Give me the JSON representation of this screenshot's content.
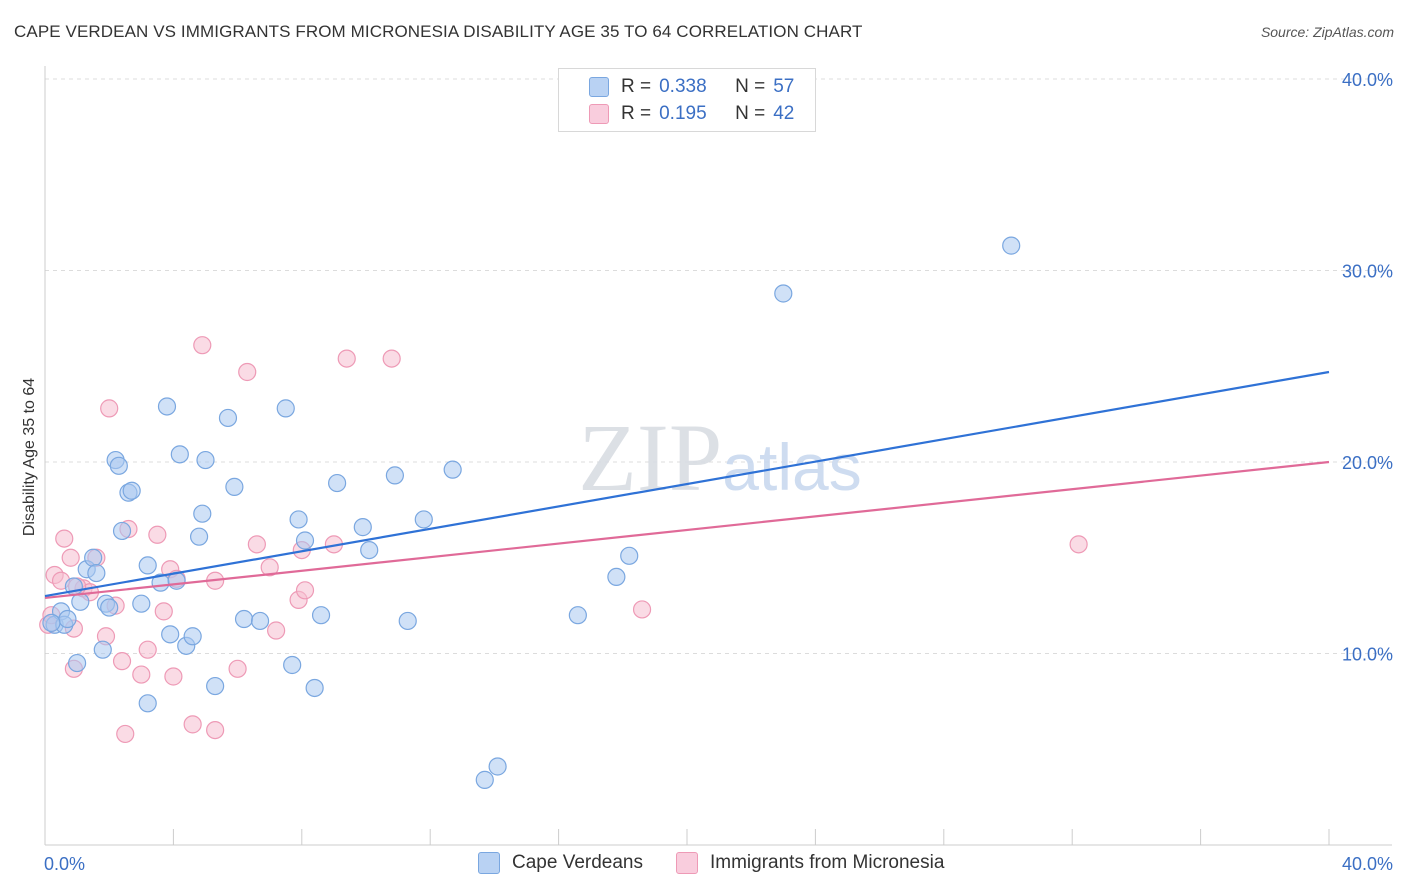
{
  "title": "CAPE VERDEAN VS IMMIGRANTS FROM MICRONESIA DISABILITY AGE 35 TO 64 CORRELATION CHART",
  "source": "Source: ZipAtlas.com",
  "watermark": "ZIPatlas",
  "colors": {
    "blue_fill": "#a9c8f0",
    "blue_stroke": "#7aa7e0",
    "blue_line": "#2f72d6",
    "pink_fill": "#f6bdd0",
    "pink_stroke": "#ee9ab6",
    "pink_line": "#e06a98",
    "tick_text": "#3b6fc4"
  },
  "legend": {
    "rows": [
      {
        "r_label": "R =",
        "r_value": "0.338",
        "n_label": "N =",
        "n_value": "57"
      },
      {
        "r_label": "R =",
        "r_value": "0.195",
        "n_label": "N =",
        "n_value": "42"
      }
    ]
  },
  "bottom_legend": [
    "Cape Verdeans",
    "Immigrants from Micronesia"
  ],
  "chart_data": {
    "type": "scatter",
    "title": "CAPE VERDEAN VS IMMIGRANTS FROM MICRONESIA DISABILITY AGE 35 TO 64 CORRELATION CHART",
    "xlabel": "",
    "ylabel": "Disability Age 35 to 64",
    "xlim": [
      0,
      40
    ],
    "ylim": [
      0,
      40
    ],
    "x_tick_labels": [
      "0.0%",
      "40.0%"
    ],
    "y_ticks": [
      10,
      20,
      30,
      40
    ],
    "y_tick_labels": [
      "10.0%",
      "20.0%",
      "30.0%",
      "40.0%"
    ],
    "grid": true,
    "legend_position": "top-center",
    "series": [
      {
        "name": "Cape Verdeans",
        "trend": {
          "x": [
            0,
            40
          ],
          "y": [
            13.0,
            24.7
          ]
        },
        "points": [
          [
            0.3,
            11.5
          ],
          [
            0.5,
            12.2
          ],
          [
            0.6,
            11.5
          ],
          [
            0.7,
            11.8
          ],
          [
            0.9,
            13.5
          ],
          [
            1.0,
            9.5
          ],
          [
            1.1,
            12.7
          ],
          [
            1.3,
            14.4
          ],
          [
            1.5,
            15.0
          ],
          [
            1.6,
            14.2
          ],
          [
            1.8,
            10.2
          ],
          [
            1.9,
            12.6
          ],
          [
            2.0,
            12.4
          ],
          [
            2.2,
            20.1
          ],
          [
            2.3,
            19.8
          ],
          [
            2.4,
            16.4
          ],
          [
            2.6,
            18.4
          ],
          [
            2.7,
            18.5
          ],
          [
            3.0,
            12.6
          ],
          [
            3.2,
            14.6
          ],
          [
            3.2,
            7.4
          ],
          [
            3.6,
            13.7
          ],
          [
            3.8,
            22.9
          ],
          [
            3.9,
            11.0
          ],
          [
            4.1,
            13.8
          ],
          [
            4.2,
            20.4
          ],
          [
            4.4,
            10.4
          ],
          [
            4.6,
            10.9
          ],
          [
            4.8,
            16.1
          ],
          [
            4.9,
            17.3
          ],
          [
            5.0,
            20.1
          ],
          [
            5.3,
            8.3
          ],
          [
            5.7,
            22.3
          ],
          [
            5.9,
            18.7
          ],
          [
            6.2,
            11.8
          ],
          [
            6.7,
            11.7
          ],
          [
            7.5,
            22.8
          ],
          [
            7.7,
            9.4
          ],
          [
            7.9,
            17.0
          ],
          [
            8.1,
            15.9
          ],
          [
            8.4,
            8.2
          ],
          [
            8.6,
            12.0
          ],
          [
            9.1,
            18.9
          ],
          [
            9.9,
            16.6
          ],
          [
            10.1,
            15.4
          ],
          [
            10.9,
            19.3
          ],
          [
            11.3,
            11.7
          ],
          [
            11.8,
            17.0
          ],
          [
            12.7,
            19.6
          ],
          [
            13.7,
            3.4
          ],
          [
            14.1,
            4.1
          ],
          [
            16.6,
            12.0
          ],
          [
            17.8,
            14.0
          ],
          [
            18.2,
            15.1
          ],
          [
            23.0,
            28.8
          ],
          [
            30.1,
            31.3
          ],
          [
            0.2,
            11.6
          ]
        ]
      },
      {
        "name": "Immigrants from Micronesia",
        "trend": {
          "x": [
            0,
            40
          ],
          "y": [
            12.9,
            20.0
          ]
        },
        "points": [
          [
            0.1,
            11.5
          ],
          [
            0.2,
            12.0
          ],
          [
            0.3,
            14.1
          ],
          [
            0.5,
            13.8
          ],
          [
            0.6,
            16.0
          ],
          [
            0.8,
            15.0
          ],
          [
            0.9,
            9.2
          ],
          [
            0.9,
            11.3
          ],
          [
            1.2,
            13.4
          ],
          [
            1.4,
            13.2
          ],
          [
            1.6,
            15.0
          ],
          [
            1.9,
            10.9
          ],
          [
            2.0,
            22.8
          ],
          [
            2.2,
            12.5
          ],
          [
            2.4,
            9.6
          ],
          [
            2.5,
            5.8
          ],
          [
            2.6,
            16.5
          ],
          [
            3.0,
            8.9
          ],
          [
            3.2,
            10.2
          ],
          [
            3.5,
            16.2
          ],
          [
            3.7,
            12.2
          ],
          [
            3.9,
            14.4
          ],
          [
            4.0,
            8.8
          ],
          [
            4.1,
            13.9
          ],
          [
            4.6,
            6.3
          ],
          [
            4.9,
            26.1
          ],
          [
            5.3,
            6.0
          ],
          [
            5.3,
            13.8
          ],
          [
            6.0,
            9.2
          ],
          [
            6.3,
            24.7
          ],
          [
            6.6,
            15.7
          ],
          [
            7.0,
            14.5
          ],
          [
            7.2,
            11.2
          ],
          [
            7.9,
            12.8
          ],
          [
            8.0,
            15.4
          ],
          [
            8.1,
            13.3
          ],
          [
            9.0,
            15.7
          ],
          [
            9.4,
            25.4
          ],
          [
            10.8,
            25.4
          ],
          [
            18.6,
            12.3
          ],
          [
            32.2,
            15.7
          ],
          [
            1.0,
            13.5
          ]
        ]
      }
    ]
  }
}
